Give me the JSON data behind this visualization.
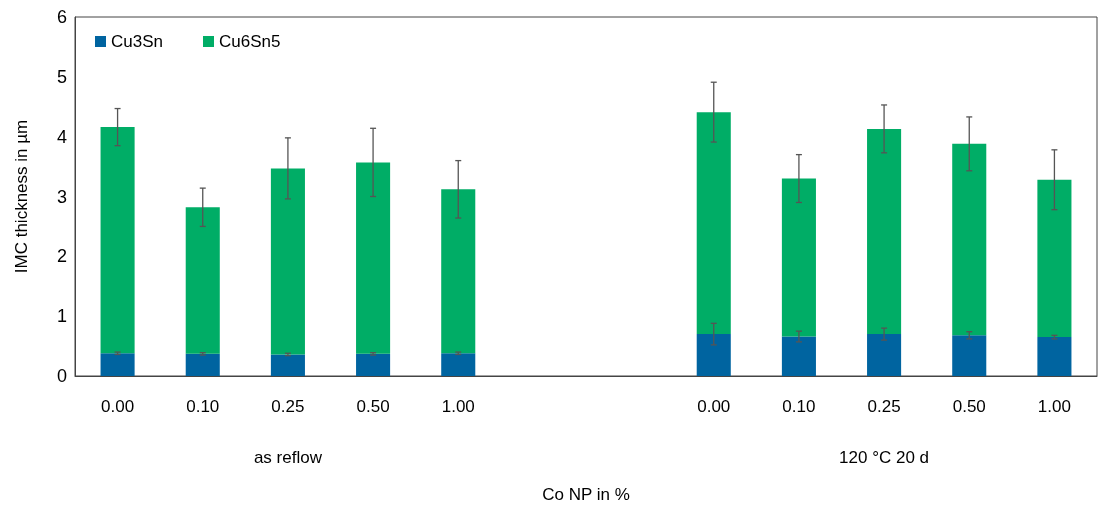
{
  "chart_data": {
    "type": "bar",
    "stacked": true,
    "ylabel": "IMC thickness in µm",
    "xlabel": "Co NP in %",
    "categories": [
      "0.00",
      "0.10",
      "0.25",
      "0.50",
      "1.00",
      null,
      null,
      "0.00",
      "0.10",
      "0.25",
      "0.50",
      "1.00"
    ],
    "series": [
      {
        "name": "Cu3Sn",
        "color": "#0064a0",
        "values": [
          0.38,
          0.37,
          0.36,
          0.37,
          0.38,
          null,
          null,
          0.7,
          0.66,
          0.7,
          0.68,
          0.65
        ],
        "errors": [
          0.02,
          0.02,
          0.02,
          0.02,
          0.02,
          null,
          null,
          0.18,
          0.09,
          0.1,
          0.06,
          0.03
        ]
      },
      {
        "name": "Cu6Sn5",
        "color": "#00ad66",
        "values": [
          3.78,
          2.45,
          3.11,
          3.2,
          2.74,
          null,
          null,
          3.71,
          2.64,
          3.43,
          3.2,
          2.63
        ],
        "errors": [
          0.31,
          0.32,
          0.51,
          0.57,
          0.48,
          null,
          null,
          0.5,
          0.4,
          0.4,
          0.45,
          0.5
        ]
      }
    ],
    "annotations": [
      "as reflow",
      "120 °C 20 d"
    ],
    "ylim": [
      0,
      6
    ],
    "yticks": [
      0,
      1,
      2,
      3,
      4,
      5,
      6
    ],
    "grid": false,
    "legend": "top left"
  }
}
